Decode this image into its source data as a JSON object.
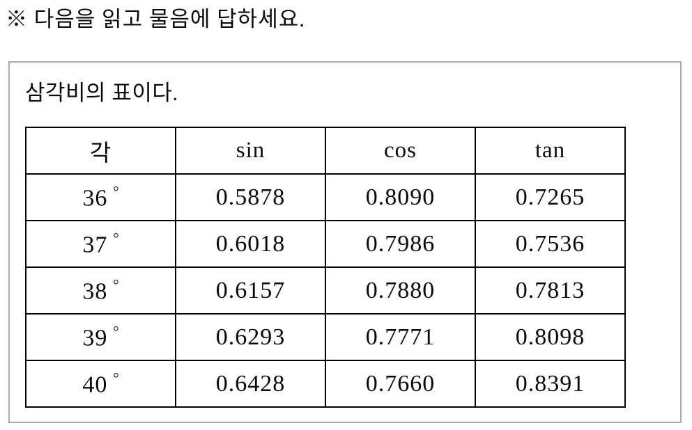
{
  "header": {
    "instruction": "※ 다음을 읽고 물음에 답하세요."
  },
  "box": {
    "title": "삼각비의 표이다."
  },
  "chart_data": {
    "type": "table",
    "caption": "삼각비의 표이다.",
    "columns": [
      "각",
      "sin",
      "cos",
      "tan"
    ],
    "rows": [
      {
        "angle": "36",
        "degree_symbol": "°",
        "sin": "0.5878",
        "cos": "0.8090",
        "tan": "0.7265"
      },
      {
        "angle": "37",
        "degree_symbol": "°",
        "sin": "0.6018",
        "cos": "0.7986",
        "tan": "0.7536"
      },
      {
        "angle": "38",
        "degree_symbol": "°",
        "sin": "0.6157",
        "cos": "0.7880",
        "tan": "0.7813"
      },
      {
        "angle": "39",
        "degree_symbol": "°",
        "sin": "0.6293",
        "cos": "0.7771",
        "tan": "0.8098"
      },
      {
        "angle": "40",
        "degree_symbol": "°",
        "sin": "0.6428",
        "cos": "0.7660",
        "tan": "0.8391"
      }
    ]
  },
  "colors": {
    "background": "#ffffff",
    "text": "#0a0a0a",
    "table_border": "#000000",
    "box_border": "#acacac"
  }
}
